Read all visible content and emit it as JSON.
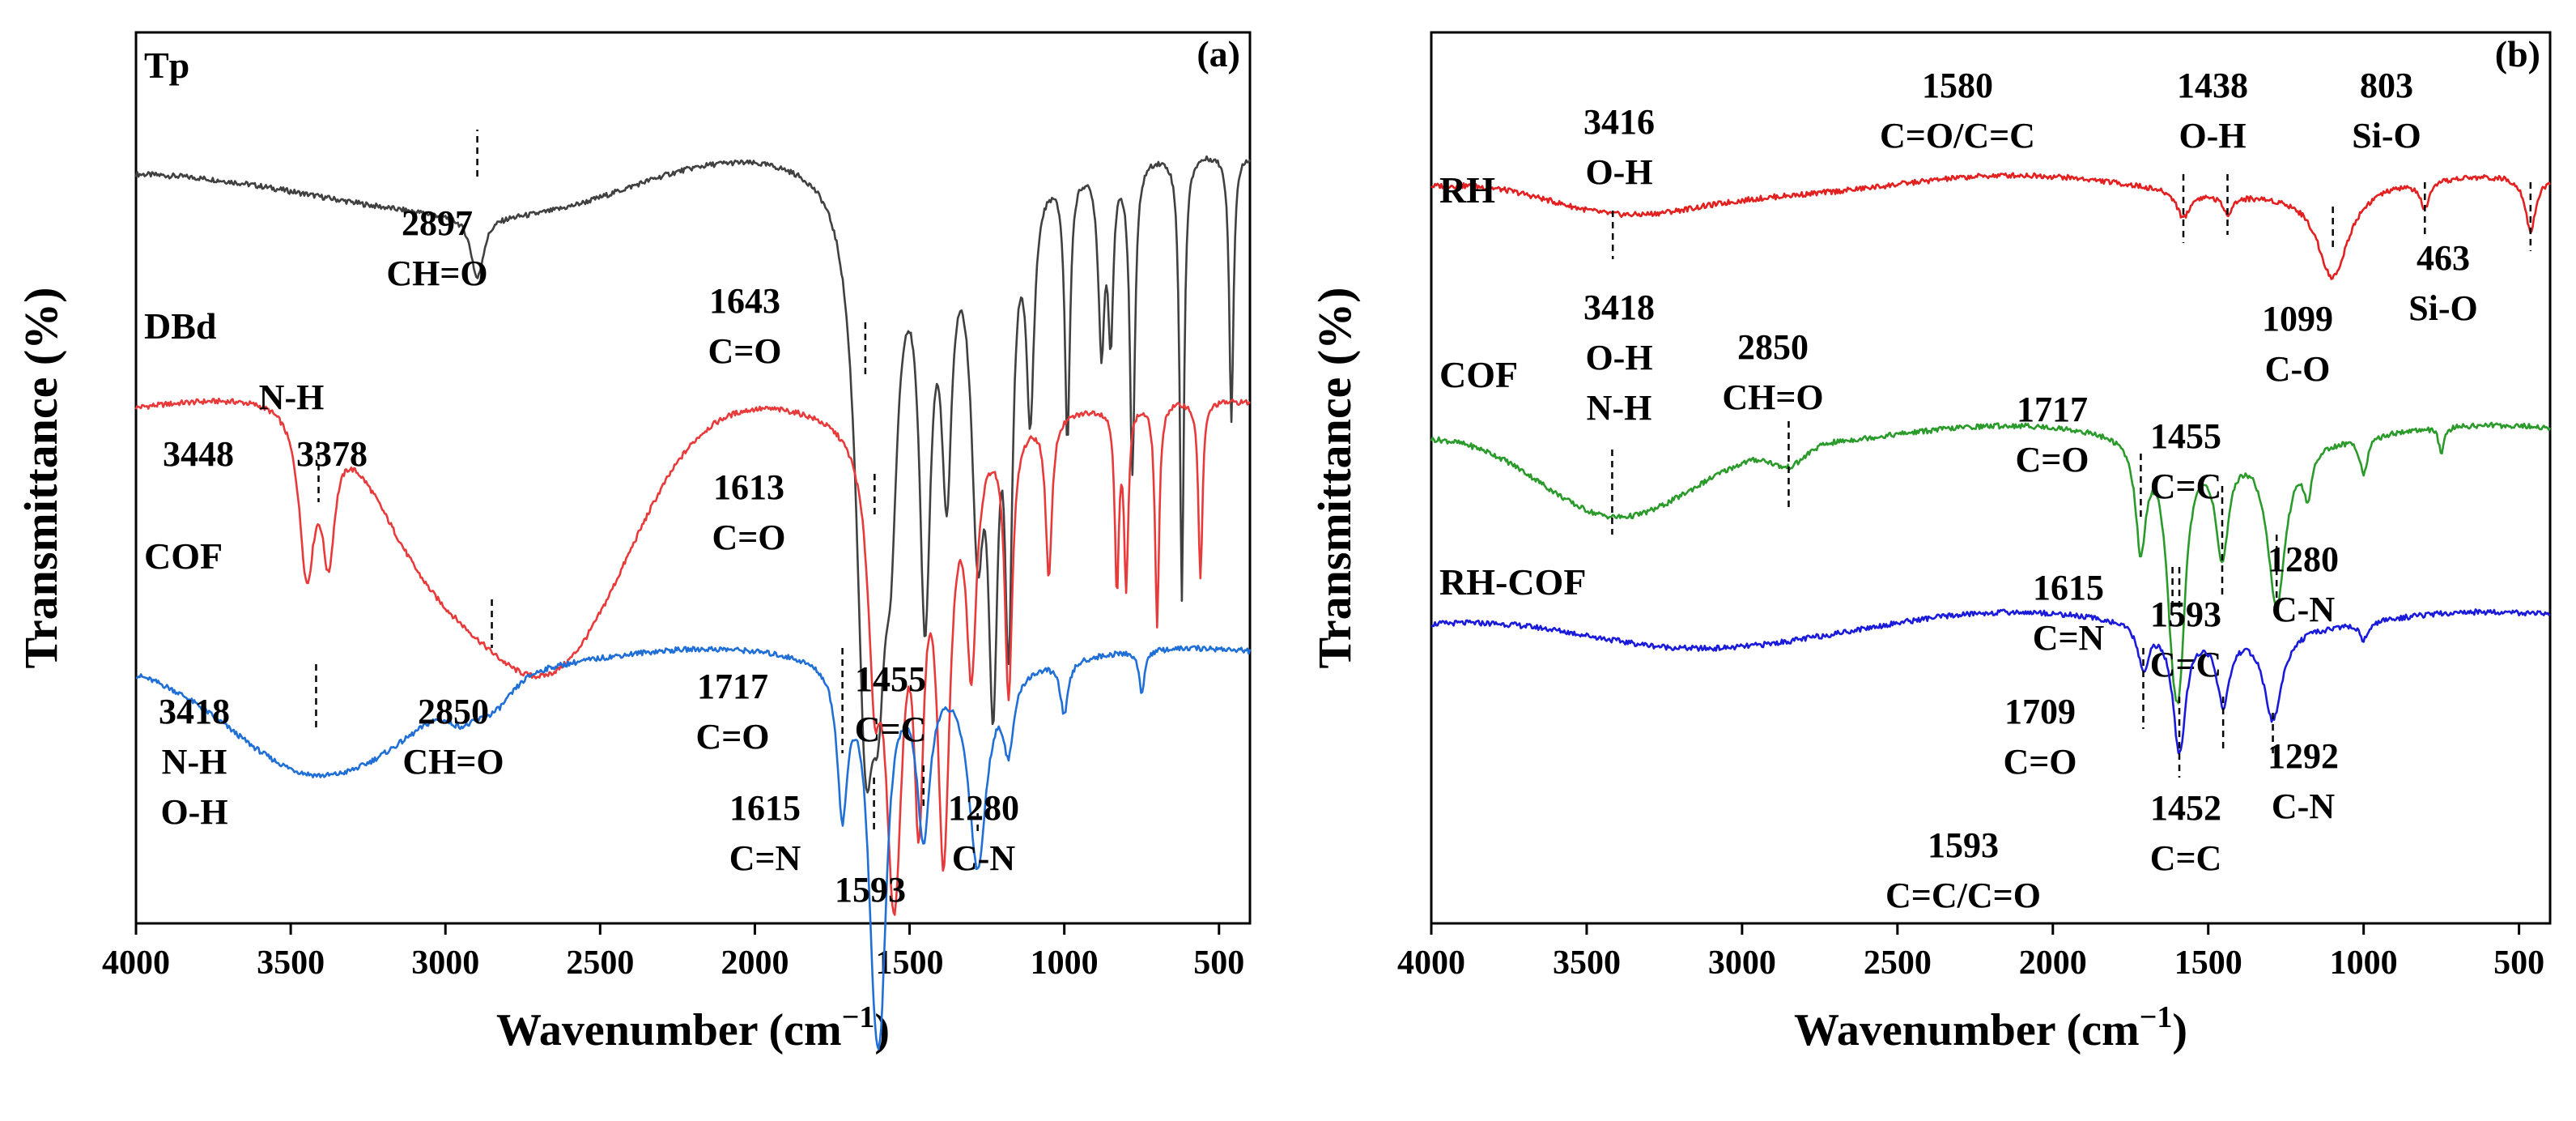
{
  "chart_data": [
    {
      "type": "line",
      "panel_label": "(a)",
      "xlabel": "Wavenumber (cm",
      "xlabel_sup": "−1",
      "xlabel_tail": ")",
      "ylabel": "Transmittance (%)",
      "xlim": [
        4000,
        400
      ],
      "xticks": [
        4000,
        3500,
        3000,
        2500,
        2000,
        1500,
        1000,
        500
      ],
      "series": [
        {
          "name": "Tp",
          "color": "#404040",
          "offset": 0.86,
          "bands": [
            [
              2897,
              0.07,
              25
            ],
            [
              1643,
              0.55,
              35
            ],
            [
              1600,
              0.35,
              30
            ],
            [
              1560,
              0.25,
              25
            ],
            [
              1450,
              0.45,
              22
            ],
            [
              1380,
              0.3,
              20
            ],
            [
              1280,
              0.35,
              25
            ],
            [
              1230,
              0.5,
              20
            ],
            [
              1180,
              0.45,
              15
            ],
            [
              1110,
              0.25,
              15
            ],
            [
              990,
              0.3,
              10
            ],
            [
              880,
              0.2,
              12
            ],
            [
              850,
              0.18,
              10
            ],
            [
              780,
              0.35,
              10
            ],
            [
              620,
              0.5,
              8
            ],
            [
              460,
              0.3,
              8
            ]
          ],
          "broad": [
            [
              3300,
              0.05,
              500
            ],
            [
              2600,
              0.03,
              300
            ]
          ],
          "annotations": [
            {
              "pos": 2897,
              "lines": [
                "2897",
                "CH=O"
              ]
            },
            {
              "pos": 1643,
              "lines": [
                "1643",
                "C=O"
              ]
            }
          ]
        },
        {
          "name": "DBd",
          "color": "#e83a3a",
          "offset": 0.58,
          "bands": [
            [
              3448,
              0.18,
              30
            ],
            [
              3378,
              0.14,
              25
            ],
            [
              1613,
              0.22,
              25
            ],
            [
              1550,
              0.5,
              35
            ],
            [
              1470,
              0.35,
              20
            ],
            [
              1390,
              0.45,
              25
            ],
            [
              1300,
              0.25,
              20
            ],
            [
              1180,
              0.3,
              15
            ],
            [
              1050,
              0.18,
              12
            ],
            [
              830,
              0.2,
              8
            ],
            [
              800,
              0.2,
              8
            ],
            [
              700,
              0.25,
              8
            ],
            [
              560,
              0.2,
              8
            ]
          ],
          "broad": [
            [
              2850,
              0.15,
              220
            ],
            [
              2580,
              0.2,
              220
            ],
            [
              3100,
              0.08,
              150
            ]
          ],
          "annotations": [
            {
              "pos": 3448,
              "lines": [
                "3448"
              ]
            },
            {
              "pos": 3378,
              "lines": [
                "3378"
              ]
            },
            {
              "pos": 3410,
              "lines": [
                "N-H"
              ]
            },
            {
              "pos": 1613,
              "lines": [
                "1613",
                "C=O"
              ]
            }
          ]
        },
        {
          "name": "COF",
          "color": "#1f6fd6",
          "offset": 0.3,
          "bands": [
            [
              1717,
              0.16,
              20
            ],
            [
              1615,
              0.22,
              25
            ],
            [
              1593,
              0.28,
              25
            ],
            [
              1455,
              0.18,
              25
            ],
            [
              1280,
              0.22,
              35
            ],
            [
              1180,
              0.08,
              20
            ],
            [
              1000,
              0.06,
              15
            ],
            [
              750,
              0.05,
              10
            ]
          ],
          "broad": [
            [
              3418,
              0.14,
              300
            ],
            [
              2850,
              0.03,
              60
            ],
            [
              2950,
              0.02,
              40
            ]
          ],
          "annotations": [
            {
              "pos": 3418,
              "lines": [
                "3418",
                "N-H",
                "O-H"
              ]
            },
            {
              "pos": 2850,
              "lines": [
                "2850",
                "CH=O"
              ]
            },
            {
              "pos": 1717,
              "lines": [
                "1717",
                "C=O"
              ]
            },
            {
              "pos": 1615,
              "lines": [
                "1615",
                "C=N"
              ]
            },
            {
              "pos": 1593,
              "lines": [
                "1593"
              ]
            },
            {
              "pos": 1455,
              "lines": [
                "1455",
                "C=C"
              ]
            },
            {
              "pos": 1280,
              "lines": [
                "1280",
                "C-N"
              ]
            }
          ]
        }
      ]
    },
    {
      "type": "line",
      "panel_label": "(b)",
      "xlabel": "Wavenumber (cm",
      "xlabel_sup": "−1",
      "xlabel_tail": ")",
      "ylabel": "Transmittance (%)",
      "xlim": [
        4000,
        400
      ],
      "xticks": [
        4000,
        3500,
        3000,
        2500,
        2000,
        1500,
        1000,
        500
      ],
      "series": [
        {
          "name": "RH",
          "color": "#e32020",
          "offset": 0.83,
          "bands": [
            [
              1580,
              0.03,
              25
            ],
            [
              1438,
              0.02,
              20
            ],
            [
              1099,
              0.1,
              60
            ],
            [
              803,
              0.03,
              20
            ],
            [
              463,
              0.06,
              20
            ]
          ],
          "broad": [
            [
              3416,
              0.04,
              250
            ]
          ],
          "annotations": [
            {
              "pos": 3416,
              "lines": [
                "3416",
                "O-H"
              ]
            },
            {
              "pos": 1580,
              "lines": [
                "1580",
                "C=O/C=C"
              ]
            },
            {
              "pos": 1438,
              "lines": [
                "1438",
                "O-H"
              ]
            },
            {
              "pos": 803,
              "lines": [
                "803",
                "Si-O"
              ]
            },
            {
              "pos": 1099,
              "lines": [
                "1099",
                "C-O"
              ]
            },
            {
              "pos": 463,
              "lines": [
                "463",
                "Si-O"
              ]
            }
          ]
        },
        {
          "name": "COF",
          "color": "#2a9a2a",
          "offset": 0.55,
          "bands": [
            [
              1717,
              0.12,
              20
            ],
            [
              1615,
              0.14,
              25
            ],
            [
              1593,
              0.2,
              25
            ],
            [
              1455,
              0.12,
              25
            ],
            [
              1280,
              0.18,
              35
            ],
            [
              1180,
              0.05,
              15
            ],
            [
              1000,
              0.04,
              15
            ],
            [
              750,
              0.03,
              10
            ]
          ],
          "broad": [
            [
              3418,
              0.1,
              250
            ],
            [
              2850,
              0.02,
              50
            ]
          ],
          "annotations": [
            {
              "pos": 3418,
              "lines": [
                "3418",
                "O-H",
                "N-H"
              ]
            },
            {
              "pos": 2850,
              "lines": [
                "2850",
                "CH=O"
              ]
            },
            {
              "pos": 1717,
              "lines": [
                "1717",
                "C=O"
              ]
            },
            {
              "pos": 1455,
              "lines": [
                "1455",
                "C=C"
              ]
            },
            {
              "pos": 1615,
              "lines": [
                "1615",
                "C=N"
              ]
            },
            {
              "pos": 1593,
              "lines": [
                "1593",
                "C=C"
              ]
            },
            {
              "pos": 1280,
              "lines": [
                "1280",
                "C-N"
              ]
            }
          ]
        },
        {
          "name": "RH-COF",
          "color": "#1a1adb",
          "offset": 0.34,
          "bands": [
            [
              1709,
              0.05,
              20
            ],
            [
              1593,
              0.14,
              25
            ],
            [
              1452,
              0.08,
              25
            ],
            [
              1292,
              0.1,
              35
            ],
            [
              1000,
              0.02,
              15
            ]
          ],
          "broad": [
            [
              3300,
              0.03,
              350
            ]
          ],
          "annotations": [
            {
              "pos": 1709,
              "lines": [
                "1709",
                "C=O"
              ]
            },
            {
              "pos": 1593,
              "lines": [
                "1593",
                "C=C/C=O"
              ]
            },
            {
              "pos": 1452,
              "lines": [
                "1452",
                "C=C"
              ]
            },
            {
              "pos": 1292,
              "lines": [
                "1292",
                "C-N"
              ]
            }
          ]
        }
      ]
    }
  ]
}
